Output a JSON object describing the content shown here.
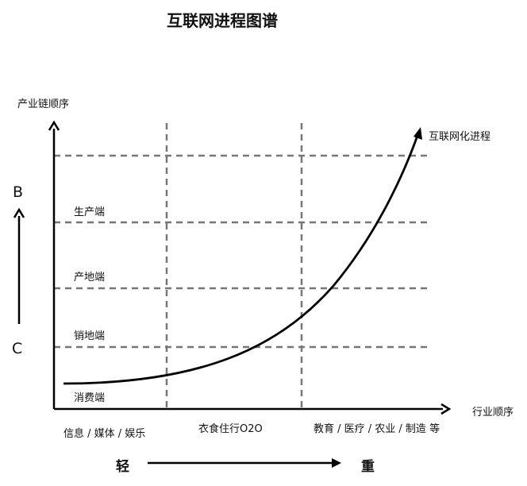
{
  "title": "互联网进程图谱",
  "y_axis_label": "产业链顺序",
  "x_axis_label": "行业顺序",
  "curve_label": "互联网化进程",
  "side_top": "B",
  "side_bottom": "C",
  "levels": [
    "生产端",
    "产地端",
    "销地端",
    "消费端"
  ],
  "industries": [
    "信息 / 媒体 / 娱乐",
    "衣食住行O2O",
    "教育 / 医疗 / 农业 / 制造 等"
  ],
  "scale_left": "轻",
  "scale_right": "重"
}
